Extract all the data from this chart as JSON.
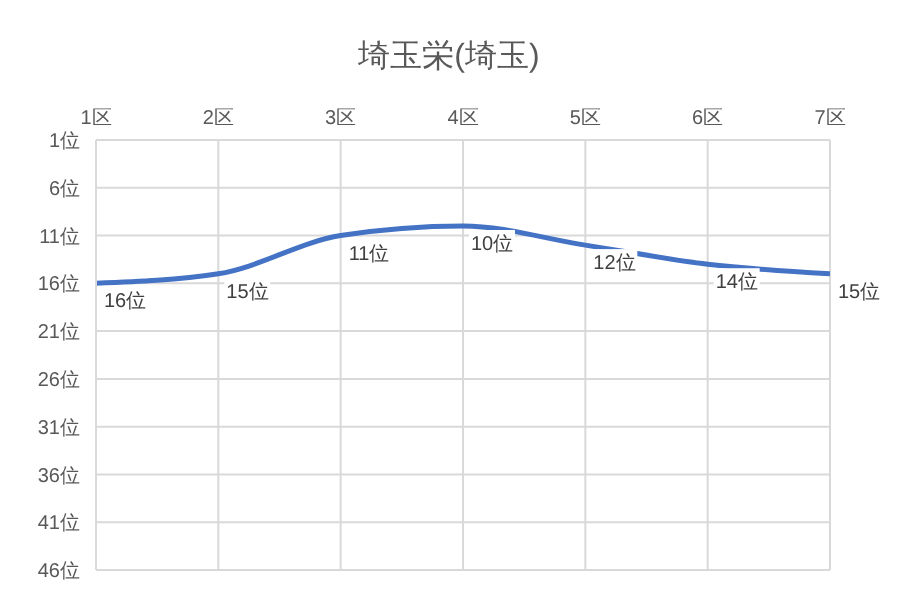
{
  "chart_data": {
    "type": "line",
    "title": "埼玉栄(埼玉)",
    "categories": [
      "1区",
      "2区",
      "3区",
      "4区",
      "5区",
      "6区",
      "7区"
    ],
    "series": [
      {
        "color": "#4472c4",
        "values": [
          16,
          15,
          11,
          10,
          12,
          14,
          15
        ],
        "value_labels": [
          "16位",
          "15位",
          "11位",
          "10位",
          "12位",
          "14位",
          "15位"
        ]
      }
    ],
    "ylim": [
      46,
      1
    ],
    "yticks": [
      {
        "value": 1,
        "label": "1位"
      },
      {
        "value": 6,
        "label": "6位"
      },
      {
        "value": 11,
        "label": "11位"
      },
      {
        "value": 16,
        "label": "16位"
      },
      {
        "value": 21,
        "label": "21位"
      },
      {
        "value": 26,
        "label": "26位"
      },
      {
        "value": 31,
        "label": "31位"
      },
      {
        "value": 36,
        "label": "36位"
      },
      {
        "value": 41,
        "label": "41位"
      },
      {
        "value": 46,
        "label": "46位"
      }
    ],
    "grid": true,
    "marker": "none",
    "line_style": "solid"
  }
}
